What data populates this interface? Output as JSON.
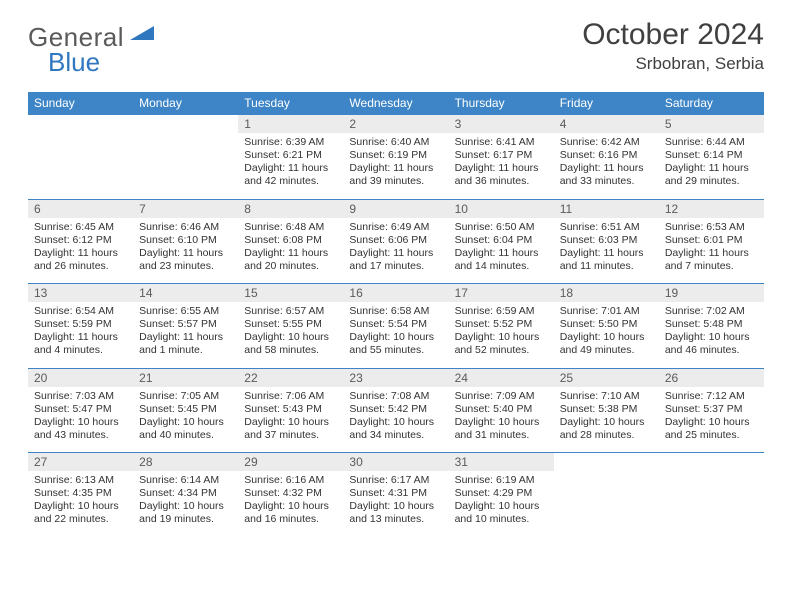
{
  "logo": {
    "word1": "General",
    "word2": "Blue",
    "gray": "#5a5a5a",
    "blue": "#2f78c0"
  },
  "header": {
    "month": "October 2024",
    "location": "Srbobran, Serbia"
  },
  "colors": {
    "headerbar": "#3d85c6",
    "daynum_bg": "#ececec",
    "rule": "#3d85c6"
  },
  "weekdays": [
    "Sunday",
    "Monday",
    "Tuesday",
    "Wednesday",
    "Thursday",
    "Friday",
    "Saturday"
  ],
  "weeks": [
    [
      null,
      null,
      {
        "n": "1",
        "sr": "Sunrise: 6:39 AM",
        "ss": "Sunset: 6:21 PM",
        "dl": "Daylight: 11 hours and 42 minutes."
      },
      {
        "n": "2",
        "sr": "Sunrise: 6:40 AM",
        "ss": "Sunset: 6:19 PM",
        "dl": "Daylight: 11 hours and 39 minutes."
      },
      {
        "n": "3",
        "sr": "Sunrise: 6:41 AM",
        "ss": "Sunset: 6:17 PM",
        "dl": "Daylight: 11 hours and 36 minutes."
      },
      {
        "n": "4",
        "sr": "Sunrise: 6:42 AM",
        "ss": "Sunset: 6:16 PM",
        "dl": "Daylight: 11 hours and 33 minutes."
      },
      {
        "n": "5",
        "sr": "Sunrise: 6:44 AM",
        "ss": "Sunset: 6:14 PM",
        "dl": "Daylight: 11 hours and 29 minutes."
      }
    ],
    [
      {
        "n": "6",
        "sr": "Sunrise: 6:45 AM",
        "ss": "Sunset: 6:12 PM",
        "dl": "Daylight: 11 hours and 26 minutes."
      },
      {
        "n": "7",
        "sr": "Sunrise: 6:46 AM",
        "ss": "Sunset: 6:10 PM",
        "dl": "Daylight: 11 hours and 23 minutes."
      },
      {
        "n": "8",
        "sr": "Sunrise: 6:48 AM",
        "ss": "Sunset: 6:08 PM",
        "dl": "Daylight: 11 hours and 20 minutes."
      },
      {
        "n": "9",
        "sr": "Sunrise: 6:49 AM",
        "ss": "Sunset: 6:06 PM",
        "dl": "Daylight: 11 hours and 17 minutes."
      },
      {
        "n": "10",
        "sr": "Sunrise: 6:50 AM",
        "ss": "Sunset: 6:04 PM",
        "dl": "Daylight: 11 hours and 14 minutes."
      },
      {
        "n": "11",
        "sr": "Sunrise: 6:51 AM",
        "ss": "Sunset: 6:03 PM",
        "dl": "Daylight: 11 hours and 11 minutes."
      },
      {
        "n": "12",
        "sr": "Sunrise: 6:53 AM",
        "ss": "Sunset: 6:01 PM",
        "dl": "Daylight: 11 hours and 7 minutes."
      }
    ],
    [
      {
        "n": "13",
        "sr": "Sunrise: 6:54 AM",
        "ss": "Sunset: 5:59 PM",
        "dl": "Daylight: 11 hours and 4 minutes."
      },
      {
        "n": "14",
        "sr": "Sunrise: 6:55 AM",
        "ss": "Sunset: 5:57 PM",
        "dl": "Daylight: 11 hours and 1 minute."
      },
      {
        "n": "15",
        "sr": "Sunrise: 6:57 AM",
        "ss": "Sunset: 5:55 PM",
        "dl": "Daylight: 10 hours and 58 minutes."
      },
      {
        "n": "16",
        "sr": "Sunrise: 6:58 AM",
        "ss": "Sunset: 5:54 PM",
        "dl": "Daylight: 10 hours and 55 minutes."
      },
      {
        "n": "17",
        "sr": "Sunrise: 6:59 AM",
        "ss": "Sunset: 5:52 PM",
        "dl": "Daylight: 10 hours and 52 minutes."
      },
      {
        "n": "18",
        "sr": "Sunrise: 7:01 AM",
        "ss": "Sunset: 5:50 PM",
        "dl": "Daylight: 10 hours and 49 minutes."
      },
      {
        "n": "19",
        "sr": "Sunrise: 7:02 AM",
        "ss": "Sunset: 5:48 PM",
        "dl": "Daylight: 10 hours and 46 minutes."
      }
    ],
    [
      {
        "n": "20",
        "sr": "Sunrise: 7:03 AM",
        "ss": "Sunset: 5:47 PM",
        "dl": "Daylight: 10 hours and 43 minutes."
      },
      {
        "n": "21",
        "sr": "Sunrise: 7:05 AM",
        "ss": "Sunset: 5:45 PM",
        "dl": "Daylight: 10 hours and 40 minutes."
      },
      {
        "n": "22",
        "sr": "Sunrise: 7:06 AM",
        "ss": "Sunset: 5:43 PM",
        "dl": "Daylight: 10 hours and 37 minutes."
      },
      {
        "n": "23",
        "sr": "Sunrise: 7:08 AM",
        "ss": "Sunset: 5:42 PM",
        "dl": "Daylight: 10 hours and 34 minutes."
      },
      {
        "n": "24",
        "sr": "Sunrise: 7:09 AM",
        "ss": "Sunset: 5:40 PM",
        "dl": "Daylight: 10 hours and 31 minutes."
      },
      {
        "n": "25",
        "sr": "Sunrise: 7:10 AM",
        "ss": "Sunset: 5:38 PM",
        "dl": "Daylight: 10 hours and 28 minutes."
      },
      {
        "n": "26",
        "sr": "Sunrise: 7:12 AM",
        "ss": "Sunset: 5:37 PM",
        "dl": "Daylight: 10 hours and 25 minutes."
      }
    ],
    [
      {
        "n": "27",
        "sr": "Sunrise: 6:13 AM",
        "ss": "Sunset: 4:35 PM",
        "dl": "Daylight: 10 hours and 22 minutes."
      },
      {
        "n": "28",
        "sr": "Sunrise: 6:14 AM",
        "ss": "Sunset: 4:34 PM",
        "dl": "Daylight: 10 hours and 19 minutes."
      },
      {
        "n": "29",
        "sr": "Sunrise: 6:16 AM",
        "ss": "Sunset: 4:32 PM",
        "dl": "Daylight: 10 hours and 16 minutes."
      },
      {
        "n": "30",
        "sr": "Sunrise: 6:17 AM",
        "ss": "Sunset: 4:31 PM",
        "dl": "Daylight: 10 hours and 13 minutes."
      },
      {
        "n": "31",
        "sr": "Sunrise: 6:19 AM",
        "ss": "Sunset: 4:29 PM",
        "dl": "Daylight: 10 hours and 10 minutes."
      },
      null,
      null
    ]
  ]
}
